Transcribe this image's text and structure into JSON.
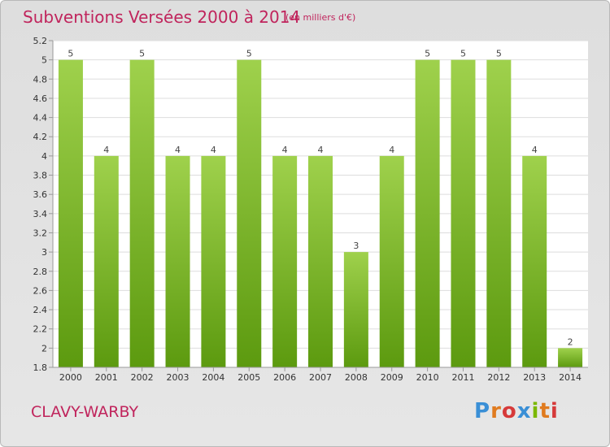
{
  "header": {
    "title": "Subventions Versées 2000 à 2014",
    "subtitle": "(en milliers d'€)"
  },
  "footer": {
    "commune": "CLAVY-WARBY",
    "logo": "Proxiti",
    "logo_colors": [
      "#3a8fd6",
      "#e07b1f",
      "#d63a3a",
      "#3a8fd6",
      "#7ab800",
      "#e07b1f",
      "#d63a3a"
    ]
  },
  "colors": {
    "title": "#c0245c",
    "bar_light": "#9acd48",
    "bar_dark": "#5f9e12",
    "plot_bg": "#ffffff",
    "grid": "#dddddd"
  },
  "chart_data": {
    "type": "bar",
    "title": "Subventions Versées 2000 à 2014",
    "categories": [
      "2000",
      "2001",
      "2002",
      "2003",
      "2004",
      "2005",
      "2006",
      "2007",
      "2008",
      "2009",
      "2010",
      "2011",
      "2012",
      "2013",
      "2014"
    ],
    "values": [
      5,
      4,
      5,
      4,
      4,
      5,
      4,
      4,
      3,
      4,
      5,
      5,
      5,
      4,
      2
    ],
    "data_labels": [
      "5",
      "4",
      "5",
      "4",
      "4",
      "5",
      "4",
      "4",
      "3",
      "4",
      "5",
      "5",
      "5",
      "4",
      "2"
    ],
    "ytick_labels": [
      "1.8",
      "2",
      "2.2",
      "2.4",
      "2.6",
      "2.8",
      "3",
      "3.2",
      "3.4",
      "3.6",
      "3.8",
      "4",
      "4.2",
      "4.4",
      "4.6",
      "4.8",
      "5",
      "5.2"
    ],
    "ytick_values": [
      1.8,
      2,
      2.2,
      2.4,
      2.6,
      2.8,
      3,
      3.2,
      3.4,
      3.6,
      3.8,
      4,
      4.2,
      4.4,
      4.6,
      4.8,
      5,
      5.2
    ],
    "ylim": [
      1.8,
      5.2
    ],
    "grid": true,
    "xlabel": "",
    "ylabel": ""
  }
}
